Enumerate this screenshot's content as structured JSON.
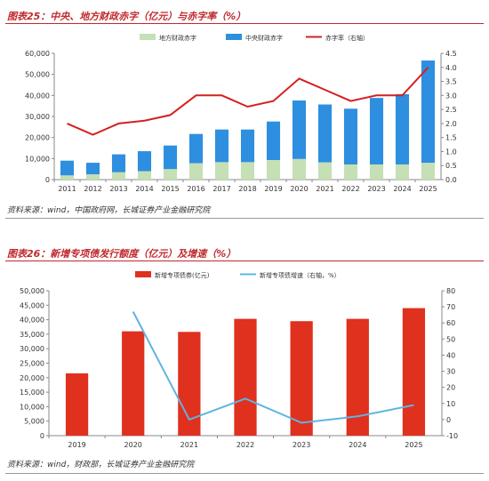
{
  "figures": [
    {
      "title": "图表25：中央、地方财政赤字（亿元）与赤字率（%）",
      "source": "资料来源：wind，中国政府网，长城证券产业金融研究院"
    },
    {
      "title": "图表26：新增专项债发行额度（亿元）及增速（%）",
      "source": "资料来源：wind，财政部，长城证券产业金融研究院"
    }
  ],
  "chart_data": [
    {
      "type": "bar",
      "stacked": true,
      "categories": [
        "2011",
        "2012",
        "2013",
        "2014",
        "2015",
        "2016",
        "2017",
        "2018",
        "2019",
        "2020",
        "2021",
        "2022",
        "2023",
        "2024",
        "2025"
      ],
      "series": [
        {
          "name": "地方财政赤字",
          "kind": "bar",
          "axis": "left",
          "color": "#c5e0b4",
          "values": [
            2000,
            2500,
            3500,
            4000,
            5000,
            7800,
            8300,
            8300,
            9300,
            9800,
            8200,
            7200,
            7200,
            7200,
            8000
          ]
        },
        {
          "name": "中央财政赤字",
          "kind": "bar",
          "axis": "left",
          "color": "#2e8fe0",
          "values": [
            7000,
            5500,
            8500,
            9500,
            11200,
            13900,
            15500,
            15500,
            18300,
            27800,
            27500,
            26500,
            31600,
            33400,
            48600
          ]
        },
        {
          "name": "赤字率（右轴）",
          "kind": "line",
          "axis": "right",
          "color": "#d42020",
          "values": [
            2.0,
            1.6,
            2.0,
            2.1,
            2.3,
            3.0,
            3.0,
            2.6,
            2.8,
            3.6,
            3.2,
            2.8,
            3.0,
            3.0,
            4.0
          ]
        }
      ],
      "ylim_left": [
        0,
        60000
      ],
      "yticks_left": [
        "0",
        "10,000",
        "20,000",
        "30,000",
        "40,000",
        "50,000",
        "60,000"
      ],
      "ylim_right": [
        0,
        4.5
      ],
      "yticks_right": [
        "0.0",
        "0.5",
        "1.0",
        "1.5",
        "2.0",
        "2.5",
        "3.0",
        "3.5",
        "4.0",
        "4.5"
      ],
      "legend_position": "top",
      "grid": false
    },
    {
      "type": "bar",
      "categories": [
        "2019",
        "2020",
        "2021",
        "2022",
        "2023",
        "2024",
        "2025"
      ],
      "series": [
        {
          "name": "新增专项债券(亿元)",
          "kind": "bar",
          "axis": "left",
          "color": "#e0301e",
          "values": [
            21500,
            36000,
            35800,
            40300,
            39500,
            40300,
            44000
          ]
        },
        {
          "name": "新增专项债增速（右轴，%）",
          "kind": "line",
          "axis": "right",
          "color": "#5fb4e0",
          "values": [
            null,
            67,
            0,
            13,
            -2,
            2,
            9
          ]
        }
      ],
      "ylim_left": [
        0,
        50000
      ],
      "yticks_left": [
        "0",
        "5,000",
        "10,000",
        "15,000",
        "20,000",
        "25,000",
        "30,000",
        "35,000",
        "40,000",
        "45,000",
        "50,000"
      ],
      "ylim_right": [
        -10,
        80
      ],
      "yticks_right": [
        "-10",
        "0",
        "10",
        "20",
        "30",
        "40",
        "50",
        "60",
        "70",
        "80"
      ],
      "legend_position": "top",
      "grid": false
    }
  ]
}
